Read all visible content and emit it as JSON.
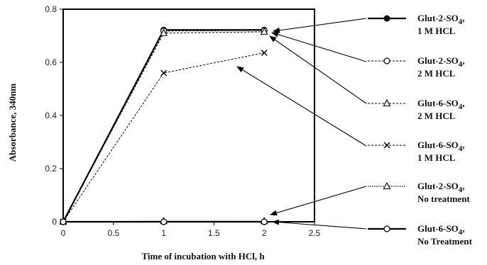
{
  "chart_data": {
    "type": "line",
    "xlabel": "Time of incubation with HCl,  h",
    "ylabel": "Absorbance,  340nm",
    "xlim": [
      0,
      2.5
    ],
    "ylim": [
      0,
      0.8
    ],
    "x_ticks": [
      "0",
      "0.5",
      "1",
      "1.5",
      "2",
      "2.5"
    ],
    "y_ticks": [
      "0",
      "0.2",
      "0.4",
      "0.6",
      "0.8"
    ],
    "grid": false,
    "legend_position": "right",
    "series": [
      {
        "name_line1": "Glut-2-SO",
        "name_sub": "4",
        "name_suffix": ",",
        "name_line2": "1 M HCL",
        "marker": "filled-circle",
        "line_style": "solid-thick",
        "x": [
          0,
          1,
          2
        ],
        "y": [
          0,
          0.722,
          0.722
        ]
      },
      {
        "name_line1": "Glut-2-SO",
        "name_sub": "4",
        "name_suffix": ",",
        "name_line2": "2 M HCL",
        "marker": "open-circle",
        "line_style": "dashed",
        "x": [
          0,
          1,
          2
        ],
        "y": [
          0,
          0.718,
          0.72
        ]
      },
      {
        "name_line1": "Glut-6-SO",
        "name_sub": "4",
        "name_suffix": ",",
        "name_line2": "2 M HCL",
        "marker": "open-triangle",
        "line_style": "dashed",
        "x": [
          0,
          1,
          2
        ],
        "y": [
          0,
          0.71,
          0.715
        ]
      },
      {
        "name_line1": "Glut-6-SO",
        "name_sub": "4",
        "name_suffix": ",",
        "name_line2": "1 M HCL",
        "marker": "x",
        "line_style": "dashed",
        "x": [
          0,
          1,
          2
        ],
        "y": [
          0,
          0.56,
          0.636
        ]
      },
      {
        "name_line1": "Glut-2-SO",
        "name_sub": "4",
        "name_suffix": ",",
        "name_line2": "No treatment",
        "marker": "open-triangle",
        "line_style": "dotted",
        "x": [
          0,
          1,
          2
        ],
        "y": [
          0,
          0.002,
          0.002
        ]
      },
      {
        "name_line1": "Glut-6-SO",
        "name_sub": "4",
        "name_suffix": ",",
        "name_line2": "No Treatment",
        "marker": "open-circle",
        "line_style": "solid-thick",
        "x": [
          0,
          1,
          2
        ],
        "y": [
          0,
          0,
          0
        ]
      }
    ]
  }
}
